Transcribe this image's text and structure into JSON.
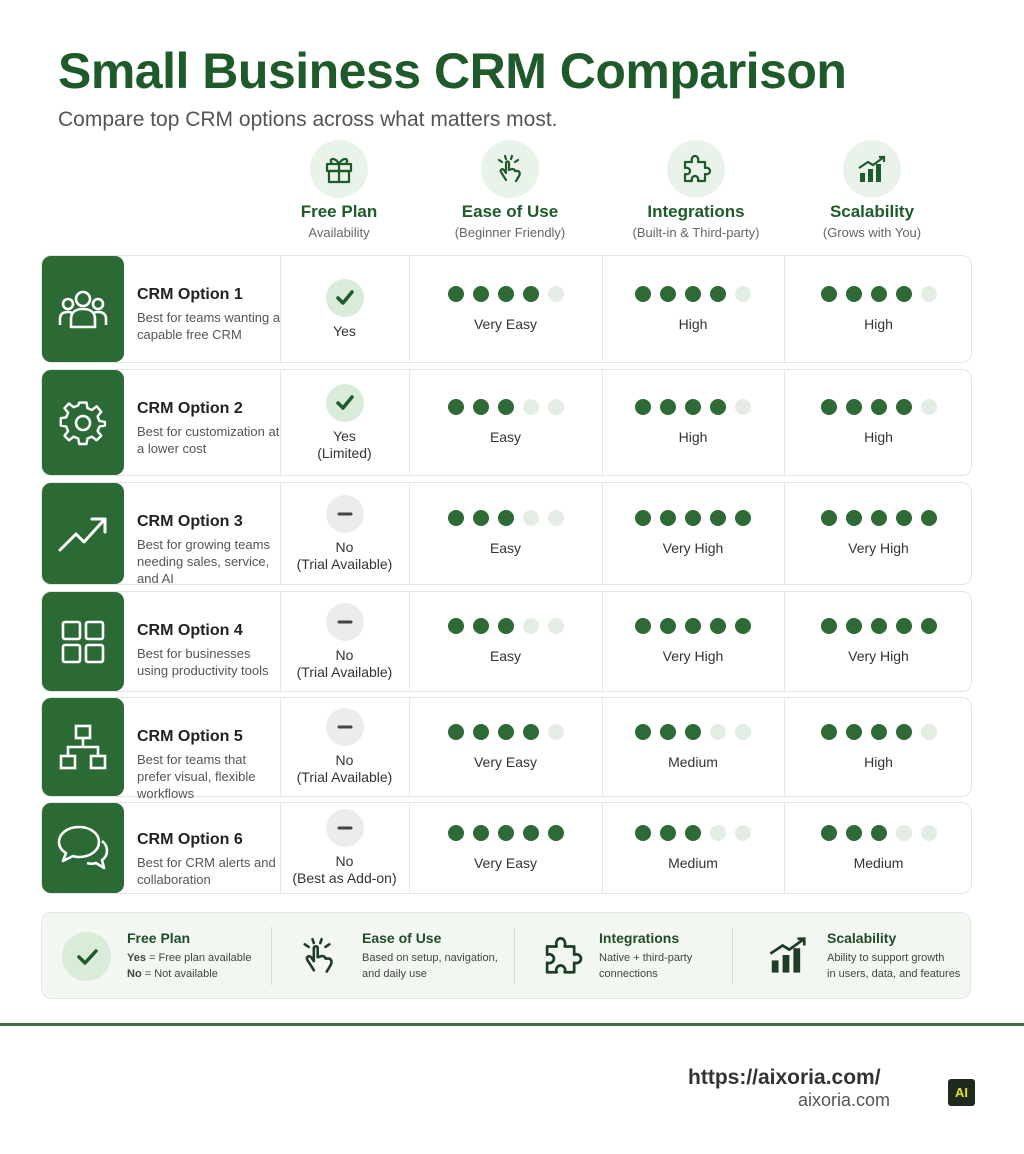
{
  "header": {
    "title": "Small Business CRM Comparison",
    "subtitle": "Compare top CRM options across what matters most."
  },
  "columns": [
    {
      "label": "Free Plan",
      "sub": "Availability",
      "icon": "gift-icon"
    },
    {
      "label": "Ease of Use",
      "sub": "(Beginner Friendly)",
      "icon": "hand-tap-icon"
    },
    {
      "label": "Integrations",
      "sub": "(Built-in & Third-party)",
      "icon": "puzzle-icon"
    },
    {
      "label": "Scalability",
      "sub": "(Grows with You)",
      "icon": "growth-chart-icon"
    }
  ],
  "rows": [
    {
      "name": "CRM Option 1",
      "desc": "Best for teams wanting a capable free CRM",
      "icon": "users-icon",
      "free": {
        "status": "yes",
        "text": "Yes"
      },
      "ease": {
        "rating": 4,
        "text": "Very Easy"
      },
      "integrations": {
        "rating": 4,
        "text": "High"
      },
      "scalability": {
        "rating": 4,
        "text": "High"
      }
    },
    {
      "name": "CRM Option 2",
      "desc": "Best for customization at a lower cost",
      "icon": "gear-icon",
      "free": {
        "status": "yes",
        "text": "Yes\n(Limited)"
      },
      "ease": {
        "rating": 3,
        "text": "Easy"
      },
      "integrations": {
        "rating": 4,
        "text": "High"
      },
      "scalability": {
        "rating": 4,
        "text": "High"
      }
    },
    {
      "name": "CRM Option 3",
      "desc": "Best for growing teams needing sales, service, and AI",
      "icon": "trend-up-icon",
      "free": {
        "status": "no",
        "text": "No\n(Trial Available)"
      },
      "ease": {
        "rating": 3,
        "text": "Easy"
      },
      "integrations": {
        "rating": 5,
        "text": "Very High"
      },
      "scalability": {
        "rating": 5,
        "text": "Very High"
      }
    },
    {
      "name": "CRM Option 4",
      "desc": "Best for businesses using productivity tools",
      "icon": "grid-icon",
      "free": {
        "status": "no",
        "text": "No\n(Trial Available)"
      },
      "ease": {
        "rating": 3,
        "text": "Easy"
      },
      "integrations": {
        "rating": 5,
        "text": "Very High"
      },
      "scalability": {
        "rating": 5,
        "text": "Very High"
      }
    },
    {
      "name": "CRM Option 5",
      "desc": "Best for teams that prefer visual, flexible workflows",
      "icon": "hierarchy-icon",
      "free": {
        "status": "no",
        "text": "No\n(Trial Available)"
      },
      "ease": {
        "rating": 4,
        "text": "Very Easy"
      },
      "integrations": {
        "rating": 3,
        "text": "Medium"
      },
      "scalability": {
        "rating": 4,
        "text": "High"
      }
    },
    {
      "name": "CRM Option 6",
      "desc": "Best for CRM alerts and collaboration",
      "icon": "chat-bubbles-icon",
      "free": {
        "status": "no",
        "text": "No\n(Best as Add-on)"
      },
      "ease": {
        "rating": 5,
        "text": "Very Easy"
      },
      "integrations": {
        "rating": 3,
        "text": "Medium"
      },
      "scalability": {
        "rating": 3,
        "text": "Medium"
      }
    }
  ],
  "rating_max": 5,
  "legend": {
    "free": {
      "title": "Free Plan",
      "yes_key": "Yes",
      "yes_def": "=  Free plan available",
      "no_key": "No",
      "no_def": "=  Not available"
    },
    "ease": {
      "title": "Ease of Use",
      "line1": "Based on setup, navigation,",
      "line2": "and daily use"
    },
    "integrations": {
      "title": "Integrations",
      "line1": "Native + third-party",
      "line2": "connections"
    },
    "scalability": {
      "title": "Scalability",
      "line1": "Ability to support growth",
      "line2": "in users, data, and features"
    }
  },
  "footer": {
    "url": "https://aixoria.com/",
    "domain": "aixoria.com",
    "badge": "AI"
  },
  "colors": {
    "brand_green": "#1f5a2a",
    "dot_on": "#2d6a35",
    "dot_off": "#e3ede3"
  }
}
